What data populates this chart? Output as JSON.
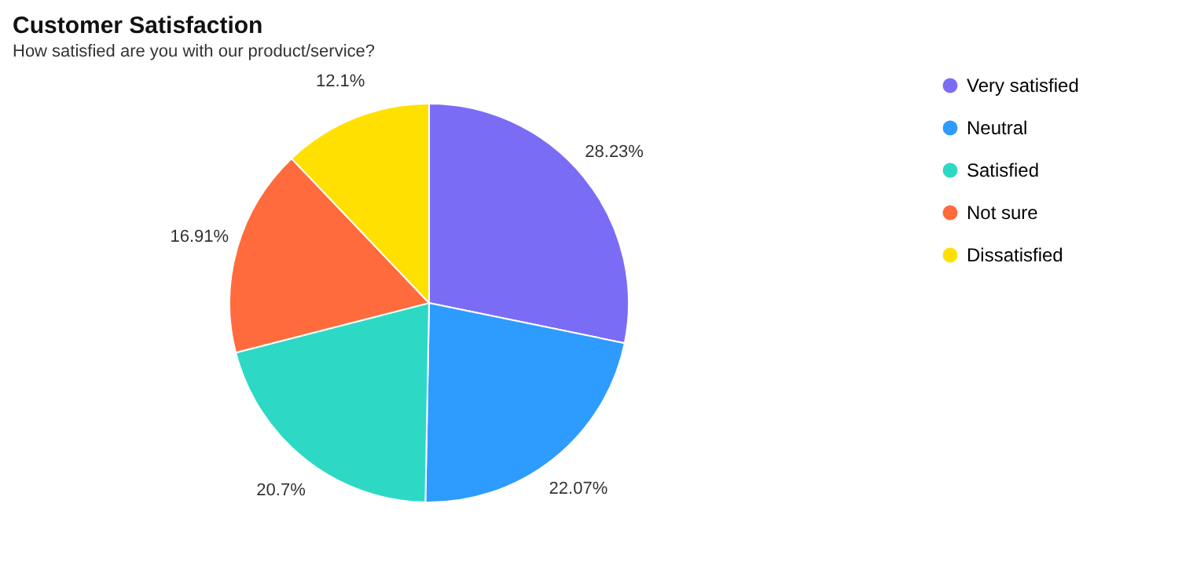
{
  "chart_data": {
    "type": "pie",
    "title": "Customer Satisfaction",
    "subtitle": "How satisfied are you with our product/service?",
    "categories": [
      "Very satisfied",
      "Neutral",
      "Satisfied",
      "Not sure",
      "Dissatisfied"
    ],
    "values": [
      28.23,
      22.07,
      20.7,
      16.91,
      12.1
    ],
    "colors": [
      "#7b6cf6",
      "#2e9bff",
      "#2dd9c5",
      "#ff6b3d",
      "#ffe000"
    ],
    "value_labels": [
      "28.23%",
      "22.07%",
      "20.7%",
      "16.91%",
      "12.1%"
    ],
    "legend": "right"
  }
}
